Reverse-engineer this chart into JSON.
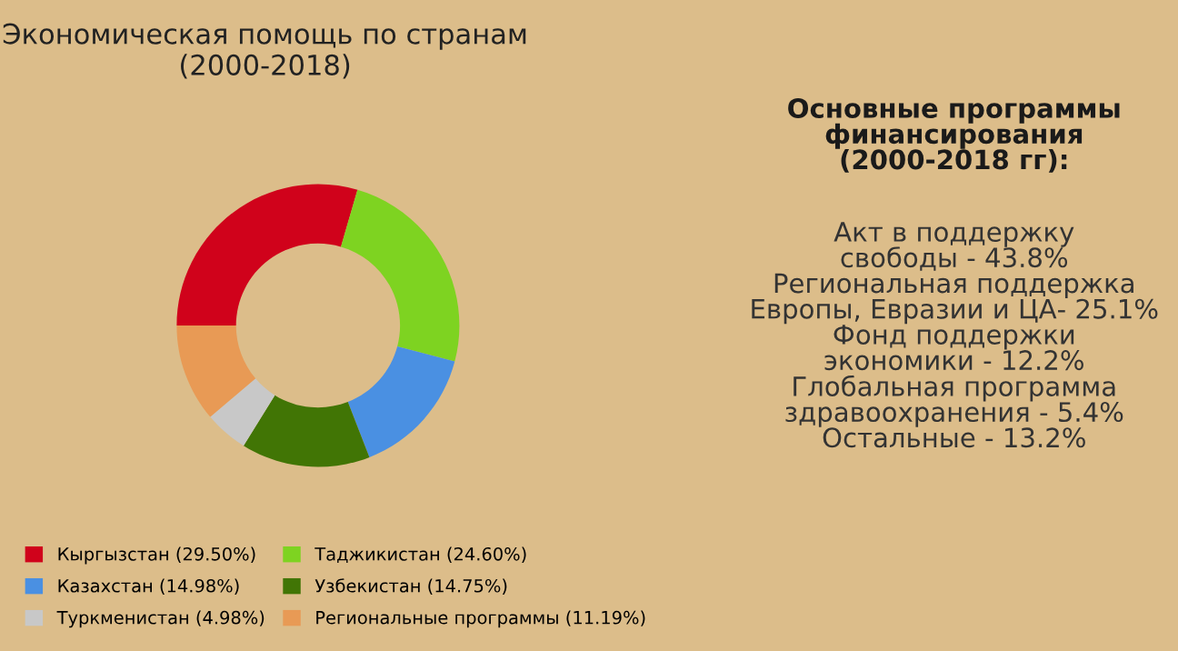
{
  "chart_data": {
    "type": "donut",
    "title": "Экономическая помощь по странам\n(2000-2018)",
    "categories": [
      "Кыргызстан (29.50%)",
      "Таджикистан (24.60%)",
      "Казахстан (14.98%)",
      "Узбекистан (14.75%)",
      "Туркменистан (4.98%)",
      "Региональные программы (11.19%)"
    ],
    "values": [
      29.5,
      24.6,
      14.98,
      14.75,
      4.98,
      11.19
    ],
    "colors": [
      "#d0021b",
      "#7ed321",
      "#4a90e2",
      "#417505",
      "#c8c8c8",
      "#e89a55"
    ],
    "legend": "bottom",
    "annotations": [
      "Основные программы\nфинансирования\n(2000-2018 гг):",
      "Акт в поддержку\nсвободы - 43.8%\nРегиональная поддержка\nЕвропы, Евразии и ЦА- 25.1%\nФонд поддержки\nэкономики - 12.2%\nГлобальная программа\nздравоохранения - 5.4%\nОстальные - 13.2%"
    ]
  }
}
